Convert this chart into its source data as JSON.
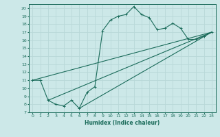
{
  "xlabel": "Humidex (Indice chaleur)",
  "xlim": [
    -0.5,
    23.5
  ],
  "ylim": [
    7,
    20.5
  ],
  "yticks": [
    7,
    8,
    9,
    10,
    11,
    12,
    13,
    14,
    15,
    16,
    17,
    18,
    19,
    20
  ],
  "xticks": [
    0,
    1,
    2,
    3,
    4,
    5,
    6,
    7,
    8,
    9,
    10,
    11,
    12,
    13,
    14,
    15,
    16,
    17,
    18,
    19,
    20,
    21,
    22,
    23
  ],
  "bg_color": "#cce8e8",
  "line_color": "#1a6b5a",
  "grid_color": "#b8d8d8",
  "series": [
    [
      0,
      11
    ],
    [
      1,
      11
    ],
    [
      2,
      8.5
    ],
    [
      3,
      8
    ],
    [
      4,
      7.8
    ],
    [
      5,
      8.5
    ],
    [
      6,
      7.5
    ],
    [
      7,
      9.5
    ],
    [
      8,
      10.2
    ],
    [
      9,
      17.2
    ],
    [
      10,
      18.5
    ],
    [
      11,
      19
    ],
    [
      12,
      19.2
    ],
    [
      13,
      20.2
    ],
    [
      14,
      19.2
    ],
    [
      15,
      18.8
    ],
    [
      16,
      17.3
    ],
    [
      17,
      17.5
    ],
    [
      18,
      18.1
    ],
    [
      19,
      17.5
    ],
    [
      20,
      16.1
    ],
    [
      21,
      16.1
    ],
    [
      22,
      16.5
    ],
    [
      23,
      17
    ]
  ],
  "line2": [
    [
      0,
      11
    ],
    [
      23,
      17
    ]
  ],
  "line3": [
    [
      2,
      8.5
    ],
    [
      23,
      17
    ]
  ],
  "line4": [
    [
      6,
      7.5
    ],
    [
      23,
      17
    ]
  ]
}
